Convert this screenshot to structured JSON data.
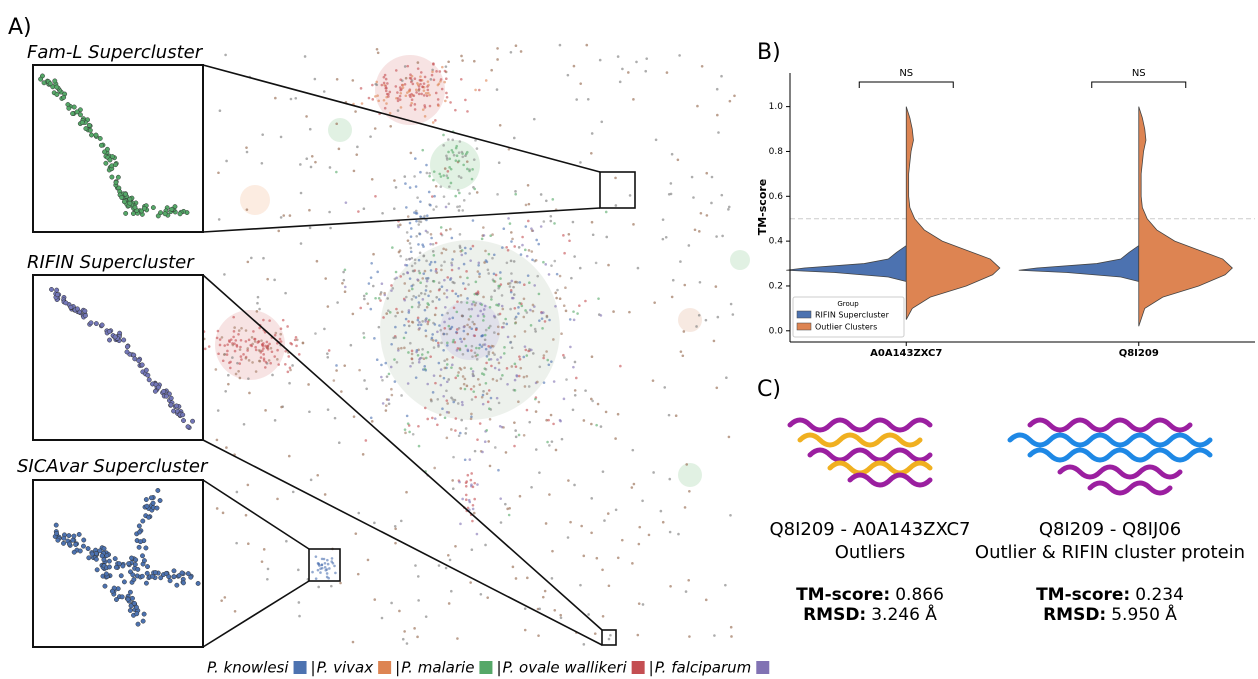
{
  "panel_a": {
    "label": "A)",
    "insets": [
      "Fam-L Supercluster",
      "RIFIN Supercluster",
      "SICAvar Supercluster"
    ],
    "legend": [
      {
        "name": "P. knowlesi",
        "color": "#4c72b0"
      },
      {
        "name": "P. vivax",
        "color": "#dd8452"
      },
      {
        "name": "P. malarie",
        "color": "#55a868"
      },
      {
        "name": "P. ovale wallikeri",
        "color": "#c44e52"
      },
      {
        "name": "P. falciparum",
        "color": "#8172b3"
      }
    ],
    "legend_separator": "|"
  },
  "chart_data": {
    "type": "split-violin",
    "label": "B)",
    "ylabel": "TM-score",
    "categories": [
      "A0A143ZXC7",
      "Q8I209"
    ],
    "annotations": [
      "NS",
      "NS"
    ],
    "ylim": [
      -0.05,
      1.15
    ],
    "yticks": [
      0.0,
      0.2,
      0.4,
      0.6,
      0.8,
      1.0
    ],
    "yticks_labels": [
      "0.0",
      "0.2",
      "0.4",
      "0.6",
      "0.8",
      "1.0"
    ],
    "reference_line": 0.5,
    "legend_title": "Group",
    "series": [
      {
        "name": "RIFIN Supercluster",
        "color": "#4c72b0",
        "side": "left",
        "violins": [
          {
            "y": [
              0.22,
              0.24,
              0.26,
              0.27,
              0.28,
              0.3,
              0.32,
              0.35,
              0.38
            ],
            "width": [
              0,
              0.15,
              0.6,
              1.0,
              0.85,
              0.35,
              0.15,
              0.08,
              0
            ]
          },
          {
            "y": [
              0.22,
              0.24,
              0.26,
              0.27,
              0.28,
              0.3,
              0.32,
              0.35,
              0.38
            ],
            "width": [
              0,
              0.15,
              0.6,
              1.0,
              0.85,
              0.35,
              0.15,
              0.08,
              0
            ]
          }
        ]
      },
      {
        "name": "Outlier Clusters",
        "color": "#dd8452",
        "side": "right",
        "violins": [
          {
            "y": [
              0.05,
              0.1,
              0.15,
              0.2,
              0.25,
              0.28,
              0.32,
              0.36,
              0.4,
              0.45,
              0.5,
              0.55,
              0.6,
              0.7,
              0.8,
              0.85,
              0.9,
              0.95,
              1.0
            ],
            "width": [
              0,
              0.05,
              0.2,
              0.5,
              0.72,
              0.78,
              0.7,
              0.5,
              0.3,
              0.15,
              0.07,
              0.03,
              0.02,
              0.02,
              0.04,
              0.06,
              0.05,
              0.03,
              0
            ]
          },
          {
            "y": [
              0.02,
              0.1,
              0.15,
              0.2,
              0.25,
              0.28,
              0.32,
              0.36,
              0.4,
              0.45,
              0.5,
              0.55,
              0.6,
              0.7,
              0.8,
              0.85,
              0.9,
              0.95,
              1.0
            ],
            "width": [
              0,
              0.05,
              0.2,
              0.5,
              0.72,
              0.78,
              0.7,
              0.5,
              0.3,
              0.15,
              0.07,
              0.03,
              0.02,
              0.02,
              0.04,
              0.06,
              0.05,
              0.03,
              0
            ]
          }
        ]
      }
    ]
  },
  "panel_c": {
    "label": "C)",
    "pairs": [
      {
        "title": "Q8I209 - A0A143ZXC7",
        "subtitle": "Outliers",
        "tm_label": "TM-score:",
        "tm_value": "0.866",
        "rmsd_label": "RMSD:",
        "rmsd_value": "3.246 Å"
      },
      {
        "title": "Q8I209 - Q8IJ06",
        "subtitle": "Outlier & RIFIN cluster protein",
        "tm_label": "TM-score:",
        "tm_value": "0.234",
        "rmsd_label": "RMSD:",
        "rmsd_value": "5.950 Å"
      }
    ]
  }
}
